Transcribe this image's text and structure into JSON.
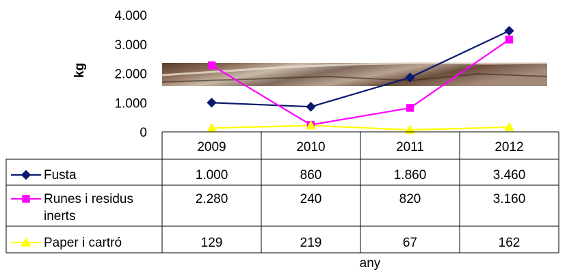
{
  "chart_data": {
    "type": "line",
    "title": "",
    "ylabel": "kg",
    "xlabel": "any",
    "ylim": [
      0,
      4000
    ],
    "yticks": [
      {
        "value": 0,
        "label": "0"
      },
      {
        "value": 1000,
        "label": "1.000"
      },
      {
        "value": 2000,
        "label": "2.000"
      },
      {
        "value": 3000,
        "label": "3.000"
      },
      {
        "value": 4000,
        "label": "4.000"
      }
    ],
    "categories": [
      "2009",
      "2010",
      "2011",
      "2012"
    ],
    "grid": false,
    "legend": "data table below plot",
    "series": [
      {
        "name": "Fusta",
        "color": "#0a1a6e",
        "marker": "diamond",
        "values": [
          1000,
          860,
          1860,
          3460
        ],
        "labels": [
          "1.000",
          "860",
          "1.860",
          "3.460"
        ]
      },
      {
        "name": "Runes i residus inerts",
        "name_lines": [
          "Runes i residus",
          "inerts"
        ],
        "color": "#ff00ff",
        "marker": "square",
        "values": [
          2280,
          240,
          820,
          3160
        ],
        "labels": [
          "2.280",
          "240",
          "820",
          "3.160"
        ]
      },
      {
        "name": "Paper i cartró",
        "color": "#ffff00",
        "marker": "triangle",
        "values": [
          129,
          219,
          67,
          162
        ],
        "labels": [
          "129",
          "219",
          "67",
          "162"
        ]
      }
    ]
  }
}
